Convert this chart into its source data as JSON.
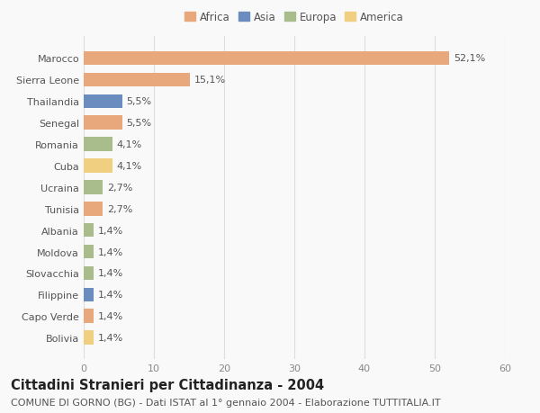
{
  "countries": [
    "Marocco",
    "Sierra Leone",
    "Thailandia",
    "Senegal",
    "Romania",
    "Cuba",
    "Ucraina",
    "Tunisia",
    "Albania",
    "Moldova",
    "Slovacchia",
    "Filippine",
    "Capo Verde",
    "Bolivia"
  ],
  "values": [
    52.1,
    15.1,
    5.5,
    5.5,
    4.1,
    4.1,
    2.7,
    2.7,
    1.4,
    1.4,
    1.4,
    1.4,
    1.4,
    1.4
  ],
  "labels": [
    "52,1%",
    "15,1%",
    "5,5%",
    "5,5%",
    "4,1%",
    "4,1%",
    "2,7%",
    "2,7%",
    "1,4%",
    "1,4%",
    "1,4%",
    "1,4%",
    "1,4%",
    "1,4%"
  ],
  "continents": [
    "Africa",
    "Africa",
    "Asia",
    "Africa",
    "Europa",
    "America",
    "Europa",
    "Africa",
    "Europa",
    "Europa",
    "Europa",
    "Asia",
    "Africa",
    "America"
  ],
  "continent_colors": {
    "Africa": "#E8A87C",
    "Asia": "#6B8CBE",
    "Europa": "#A8BC8C",
    "America": "#F0D080"
  },
  "legend_order": [
    "Africa",
    "Asia",
    "Europa",
    "America"
  ],
  "xlim": [
    0,
    60
  ],
  "xticks": [
    0,
    10,
    20,
    30,
    40,
    50,
    60
  ],
  "title": "Cittadini Stranieri per Cittadinanza - 2004",
  "subtitle": "COMUNE DI GORNO (BG) - Dati ISTAT al 1° gennaio 2004 - Elaborazione TUTTITALIA.IT",
  "background_color": "#f9f9f9",
  "grid_color": "#dddddd",
  "bar_height": 0.65,
  "title_fontsize": 10.5,
  "subtitle_fontsize": 8.0,
  "label_fontsize": 8.0,
  "tick_fontsize": 8.0,
  "legend_fontsize": 8.5
}
